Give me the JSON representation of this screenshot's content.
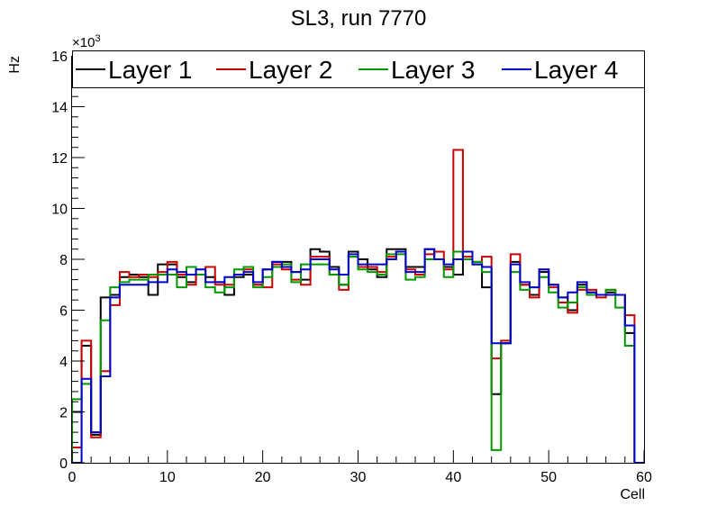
{
  "chart_data": {
    "type": "line",
    "title": "SL3, run 7770",
    "xlabel": "Cell",
    "ylabel": "Hz",
    "exponent_label": "×10",
    "exponent_power": "3",
    "xlim": [
      0,
      60
    ],
    "ylim": [
      0,
      16
    ],
    "x_ticks": [
      "0",
      "10",
      "20",
      "30",
      "40",
      "50",
      "60"
    ],
    "y_ticks": [
      "0",
      "2",
      "4",
      "6",
      "8",
      "10",
      "12",
      "14",
      "16"
    ],
    "legend_position": "top",
    "bin_width": 1,
    "series": [
      {
        "name": "Layer 1",
        "color": "#000000",
        "values": [
          2.0,
          4.6,
          1.1,
          6.5,
          6.6,
          7.3,
          7.4,
          7.3,
          6.6,
          7.8,
          7.8,
          7.3,
          7.1,
          7.4,
          7.3,
          7.1,
          6.6,
          7.3,
          7.4,
          7.0,
          7.6,
          7.9,
          7.9,
          7.5,
          7.2,
          8.4,
          8.3,
          7.7,
          7.0,
          8.3,
          8.0,
          7.6,
          7.3,
          8.4,
          8.4,
          7.7,
          7.7,
          8.4,
          8.0,
          7.7,
          7.4,
          8.3,
          7.8,
          6.9,
          2.7,
          4.7,
          7.9,
          7.0,
          6.6,
          7.5,
          7.0,
          6.5,
          6.0,
          7.0,
          6.7,
          6.6,
          6.7,
          6.6,
          5.1,
          0.0
        ]
      },
      {
        "name": "Layer 2",
        "color": "#cc0000",
        "values": [
          0.6,
          4.8,
          1.0,
          3.6,
          6.2,
          7.5,
          7.3,
          7.4,
          7.3,
          7.5,
          7.9,
          7.4,
          7.0,
          7.4,
          7.7,
          7.0,
          7.0,
          7.4,
          7.6,
          7.0,
          6.9,
          7.8,
          7.6,
          7.2,
          7.0,
          8.1,
          8.1,
          7.4,
          6.8,
          8.1,
          7.7,
          7.7,
          7.5,
          8.1,
          8.3,
          7.6,
          7.4,
          8.2,
          8.3,
          7.6,
          12.3,
          8.1,
          7.9,
          8.1,
          4.1,
          4.8,
          8.2,
          7.0,
          6.5,
          7.6,
          6.9,
          6.3,
          5.9,
          6.8,
          6.8,
          6.5,
          6.8,
          6.6,
          5.8,
          0.0
        ]
      },
      {
        "name": "Layer 3",
        "color": "#009900",
        "values": [
          2.5,
          3.1,
          1.2,
          5.6,
          6.9,
          7.1,
          7.2,
          7.2,
          7.4,
          7.4,
          7.4,
          6.9,
          7.7,
          7.4,
          6.9,
          6.7,
          6.9,
          7.6,
          7.7,
          6.9,
          7.3,
          7.7,
          7.8,
          7.1,
          7.8,
          7.8,
          7.8,
          7.4,
          7.0,
          8.1,
          7.6,
          7.5,
          7.4,
          8.2,
          8.2,
          7.2,
          7.3,
          8.0,
          8.0,
          7.3,
          8.3,
          8.0,
          7.9,
          7.5,
          0.5,
          4.7,
          7.5,
          6.8,
          6.9,
          7.3,
          6.7,
          6.1,
          6.3,
          6.9,
          6.6,
          6.6,
          6.8,
          6.1,
          4.6,
          0.0
        ]
      },
      {
        "name": "Layer 4",
        "color": "#0000cc",
        "values": [
          0.0,
          3.3,
          1.2,
          3.4,
          6.5,
          7.0,
          7.0,
          7.0,
          7.1,
          7.1,
          7.6,
          7.5,
          7.4,
          7.6,
          7.1,
          7.1,
          7.3,
          7.4,
          7.5,
          7.1,
          7.6,
          7.9,
          7.7,
          7.5,
          7.6,
          8.0,
          8.0,
          7.6,
          7.4,
          8.2,
          7.8,
          7.8,
          7.8,
          8.0,
          8.3,
          7.5,
          7.5,
          8.4,
          8.0,
          7.8,
          8.0,
          8.3,
          7.8,
          7.7,
          4.7,
          4.7,
          7.8,
          7.1,
          6.9,
          7.6,
          7.0,
          6.5,
          6.7,
          7.1,
          6.7,
          6.6,
          6.6,
          6.6,
          5.4,
          0.0
        ]
      }
    ]
  }
}
